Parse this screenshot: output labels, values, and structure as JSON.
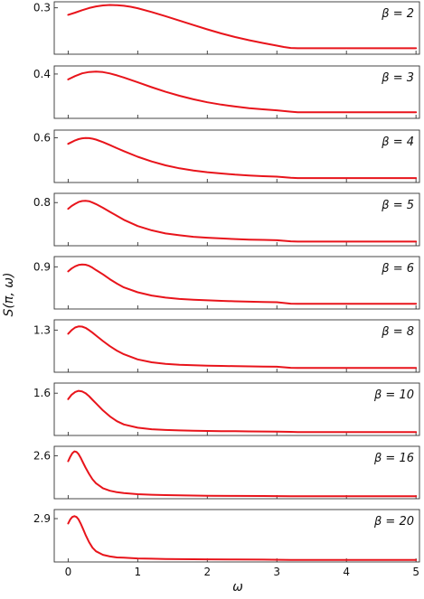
{
  "chart_data": {
    "type": "line",
    "layout": "stacked-panels",
    "xlabel": "ω",
    "ylabel": "S(π, ω)",
    "xlim": [
      -0.2,
      5.05
    ],
    "xticks": [
      0,
      1,
      2,
      3,
      4,
      5
    ],
    "grid": false,
    "line_color": "#e8141b",
    "panels": [
      {
        "beta_label": "β = 2",
        "ytick_label": "0.3",
        "ytick_value": 0.3,
        "ylim": [
          0.068,
          0.33
        ],
        "x": [
          0.0,
          0.1,
          0.2,
          0.3,
          0.4,
          0.5,
          0.6,
          0.7,
          0.8,
          0.9,
          1.0,
          1.2,
          1.4,
          1.6,
          1.8,
          2.0,
          2.2,
          2.4,
          2.6,
          2.8,
          3.0,
          3.1,
          3.2,
          3.3,
          3.5,
          4.0,
          4.5,
          5.0
        ],
        "y": [
          0.265,
          0.276,
          0.288,
          0.299,
          0.307,
          0.312,
          0.314,
          0.313,
          0.31,
          0.305,
          0.298,
          0.279,
          0.258,
          0.236,
          0.214,
          0.192,
          0.172,
          0.154,
          0.138,
          0.124,
          0.111,
          0.104,
          0.099,
          0.098,
          0.098,
          0.098,
          0.098,
          0.098
        ]
      },
      {
        "beta_label": "β = 3",
        "ytick_label": "0.4",
        "ytick_value": 0.4,
        "ylim": [
          0.07,
          0.46
        ],
        "x": [
          0.0,
          0.1,
          0.2,
          0.3,
          0.4,
          0.5,
          0.6,
          0.7,
          0.8,
          1.0,
          1.2,
          1.4,
          1.6,
          1.8,
          2.0,
          2.2,
          2.4,
          2.6,
          2.8,
          3.0,
          3.2,
          3.3,
          3.5,
          4.0,
          4.5,
          5.0
        ],
        "y": [
          0.36,
          0.385,
          0.405,
          0.415,
          0.418,
          0.414,
          0.404,
          0.39,
          0.374,
          0.338,
          0.302,
          0.268,
          0.238,
          0.212,
          0.19,
          0.172,
          0.158,
          0.146,
          0.137,
          0.13,
          0.12,
          0.115,
          0.115,
          0.115,
          0.115,
          0.115
        ]
      },
      {
        "beta_label": "β = 4",
        "ytick_label": "0.6",
        "ytick_value": 0.6,
        "ylim": [
          0.08,
          0.69
        ],
        "x": [
          0.0,
          0.05,
          0.1,
          0.15,
          0.2,
          0.25,
          0.3,
          0.35,
          0.4,
          0.5,
          0.6,
          0.7,
          0.8,
          1.0,
          1.2,
          1.4,
          1.6,
          1.8,
          2.0,
          2.2,
          2.4,
          2.6,
          2.8,
          3.0,
          3.2,
          3.3,
          3.5,
          4.0,
          4.5,
          5.0
        ],
        "y": [
          0.53,
          0.55,
          0.57,
          0.585,
          0.594,
          0.598,
          0.596,
          0.59,
          0.58,
          0.55,
          0.515,
          0.48,
          0.445,
          0.38,
          0.325,
          0.28,
          0.245,
          0.22,
          0.2,
          0.185,
          0.172,
          0.162,
          0.154,
          0.148,
          0.135,
          0.132,
          0.132,
          0.132,
          0.132,
          0.132
        ]
      },
      {
        "beta_label": "β = 5",
        "ytick_label": "0.8",
        "ytick_value": 0.8,
        "ylim": [
          0.1,
          0.95
        ],
        "x": [
          0.0,
          0.05,
          0.1,
          0.15,
          0.2,
          0.25,
          0.3,
          0.35,
          0.4,
          0.5,
          0.6,
          0.7,
          0.8,
          1.0,
          1.2,
          1.4,
          1.6,
          1.8,
          2.0,
          2.2,
          2.4,
          2.6,
          2.8,
          3.0,
          3.2,
          3.3,
          3.5,
          4.0,
          4.5,
          5.0
        ],
        "y": [
          0.7,
          0.745,
          0.78,
          0.81,
          0.826,
          0.83,
          0.822,
          0.8,
          0.775,
          0.715,
          0.65,
          0.585,
          0.52,
          0.42,
          0.35,
          0.3,
          0.27,
          0.245,
          0.23,
          0.218,
          0.208,
          0.2,
          0.195,
          0.19,
          0.172,
          0.168,
          0.168,
          0.168,
          0.168,
          0.168
        ]
      },
      {
        "beta_label": "β = 6",
        "ytick_label": "0.9",
        "ytick_value": 0.9,
        "ylim": [
          0.12,
          1.09
        ],
        "x": [
          0.0,
          0.05,
          0.1,
          0.15,
          0.2,
          0.25,
          0.3,
          0.35,
          0.4,
          0.5,
          0.6,
          0.7,
          0.8,
          1.0,
          1.2,
          1.4,
          1.6,
          1.8,
          2.0,
          2.2,
          2.4,
          2.6,
          2.8,
          3.0,
          3.2,
          3.3,
          3.5,
          4.0,
          4.5,
          5.0
        ],
        "y": [
          0.815,
          0.87,
          0.91,
          0.935,
          0.945,
          0.94,
          0.92,
          0.885,
          0.84,
          0.76,
          0.67,
          0.59,
          0.52,
          0.43,
          0.37,
          0.33,
          0.305,
          0.29,
          0.28,
          0.27,
          0.262,
          0.255,
          0.25,
          0.245,
          0.218,
          0.215,
          0.215,
          0.215,
          0.215,
          0.215
        ]
      },
      {
        "beta_label": "β = 8",
        "ytick_label": "1.3",
        "ytick_value": 1.3,
        "ylim": [
          0.15,
          1.58
        ],
        "x": [
          0.0,
          0.05,
          0.1,
          0.15,
          0.2,
          0.25,
          0.3,
          0.35,
          0.4,
          0.5,
          0.6,
          0.7,
          0.8,
          1.0,
          1.2,
          1.4,
          1.6,
          1.8,
          2.0,
          2.2,
          2.4,
          2.6,
          2.8,
          3.0,
          3.2,
          3.3,
          3.5,
          4.0,
          4.5,
          5.0
        ],
        "y": [
          1.2,
          1.3,
          1.37,
          1.4,
          1.395,
          1.36,
          1.3,
          1.23,
          1.15,
          1.0,
          0.86,
          0.74,
          0.64,
          0.5,
          0.42,
          0.38,
          0.355,
          0.34,
          0.33,
          0.322,
          0.315,
          0.31,
          0.305,
          0.3,
          0.27,
          0.265,
          0.265,
          0.265,
          0.265,
          0.265
        ]
      },
      {
        "beta_label": "β = 10",
        "ytick_label": "1.6",
        "ytick_value": 1.6,
        "ylim": [
          0.18,
          1.94
        ],
        "x": [
          0.0,
          0.05,
          0.1,
          0.15,
          0.2,
          0.25,
          0.3,
          0.35,
          0.4,
          0.5,
          0.6,
          0.7,
          0.8,
          1.0,
          1.2,
          1.4,
          1.6,
          1.8,
          2.0,
          2.2,
          2.4,
          2.6,
          2.8,
          3.0,
          3.2,
          3.3,
          3.5,
          4.0,
          4.5,
          5.0
        ],
        "y": [
          1.4,
          1.55,
          1.64,
          1.68,
          1.66,
          1.6,
          1.5,
          1.38,
          1.26,
          1.02,
          0.82,
          0.66,
          0.55,
          0.44,
          0.39,
          0.365,
          0.35,
          0.34,
          0.333,
          0.327,
          0.322,
          0.318,
          0.314,
          0.31,
          0.3,
          0.295,
          0.295,
          0.295,
          0.295,
          0.295
        ]
      },
      {
        "beta_label": "β = 16",
        "ytick_label": "2.6",
        "ytick_value": 2.6,
        "ylim": [
          0.22,
          3.13
        ],
        "x": [
          0.0,
          0.03,
          0.06,
          0.09,
          0.12,
          0.15,
          0.18,
          0.21,
          0.25,
          0.3,
          0.35,
          0.4,
          0.5,
          0.6,
          0.7,
          0.8,
          1.0,
          1.2,
          1.4,
          1.6,
          1.8,
          2.0,
          2.4,
          2.8,
          3.2,
          3.3,
          3.5,
          4.0,
          4.5,
          5.0
        ],
        "y": [
          2.3,
          2.55,
          2.75,
          2.85,
          2.82,
          2.7,
          2.5,
          2.25,
          1.95,
          1.6,
          1.3,
          1.08,
          0.8,
          0.66,
          0.58,
          0.53,
          0.47,
          0.44,
          0.42,
          0.405,
          0.395,
          0.388,
          0.378,
          0.37,
          0.36,
          0.355,
          0.355,
          0.355,
          0.355,
          0.355
        ]
      },
      {
        "beta_label": "β = 20",
        "ytick_label": "2.9",
        "ytick_value": 2.9,
        "ylim": [
          0.22,
          3.46
        ],
        "x": [
          0.0,
          0.03,
          0.06,
          0.09,
          0.12,
          0.15,
          0.18,
          0.21,
          0.25,
          0.3,
          0.35,
          0.4,
          0.5,
          0.6,
          0.7,
          0.8,
          1.0,
          1.2,
          1.4,
          1.6,
          1.8,
          2.0,
          2.4,
          2.8,
          3.2,
          3.3,
          3.5,
          4.0,
          4.5,
          5.0
        ],
        "y": [
          2.6,
          2.85,
          3.0,
          3.05,
          3.0,
          2.85,
          2.6,
          2.3,
          1.9,
          1.45,
          1.1,
          0.88,
          0.66,
          0.56,
          0.5,
          0.48,
          0.44,
          0.42,
          0.405,
          0.395,
          0.388,
          0.382,
          0.372,
          0.365,
          0.35,
          0.345,
          0.345,
          0.345,
          0.345,
          0.345
        ]
      }
    ]
  }
}
